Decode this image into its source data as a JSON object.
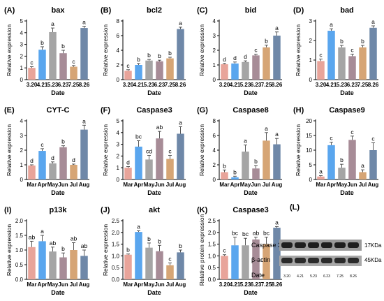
{
  "figure": {
    "blot_panel": {
      "letter": "(L)",
      "rows": [
        "Caspase 3",
        "β-actin"
      ],
      "sizes": [
        "17KDa",
        "45KDa"
      ],
      "date_label": "Date",
      "lanes": [
        "3.20",
        "4.21",
        "5.23",
        "6.23",
        "7.25",
        "8.26"
      ]
    }
  },
  "chart_data": [
    {
      "type": "bar",
      "letter": "(A)",
      "title": "bax",
      "xlabel": "Date",
      "ylabel": "Relative expression",
      "categories": [
        "3.20",
        "4.21",
        "5.23",
        "6.23",
        "7.25",
        "8.26"
      ],
      "values": [
        1.0,
        2.55,
        4.05,
        2.25,
        1.1,
        4.4
      ],
      "errors": [
        0.1,
        0.25,
        0.35,
        0.25,
        0.1,
        0.15
      ],
      "letters": [
        "c",
        "b",
        "a",
        "b",
        "c",
        "a"
      ],
      "yticks": [
        0,
        1,
        2,
        3,
        4,
        5
      ],
      "ylim": [
        0,
        5
      ]
    },
    {
      "type": "bar",
      "letter": "(B)",
      "title": "bcl2",
      "xlabel": "Date",
      "ylabel": "Relative expression",
      "categories": [
        "3.20",
        "4.21",
        "5.23",
        "6.23",
        "7.25",
        "8.26"
      ],
      "values": [
        1.2,
        2.0,
        2.6,
        2.5,
        2.9,
        6.9
      ],
      "errors": [
        0.15,
        0.2,
        0.15,
        0.15,
        0.15,
        0.25
      ],
      "letters": [
        "c",
        "b",
        "b",
        "b",
        "b",
        "a"
      ],
      "yticks": [
        0,
        2,
        4,
        6,
        8
      ],
      "ylim": [
        0,
        8
      ]
    },
    {
      "type": "bar",
      "letter": "(C)",
      "title": "bid",
      "xlabel": "Date",
      "ylabel": "Relative expression",
      "categories": [
        "3.20",
        "4.21",
        "5.23",
        "6.23",
        "7.25",
        "8.26"
      ],
      "values": [
        1.05,
        1.1,
        1.2,
        1.65,
        2.2,
        3.0
      ],
      "errors": [
        0.05,
        0.1,
        0.08,
        0.08,
        0.15,
        0.25
      ],
      "letters": [
        "d",
        "d",
        "d",
        "c",
        "b",
        "a"
      ],
      "yticks": [
        0,
        1,
        2,
        3,
        4
      ],
      "ylim": [
        0,
        4
      ]
    },
    {
      "type": "bar",
      "letter": "(D)",
      "title": "bad",
      "xlabel": "Date",
      "ylabel": "Relative expression",
      "categories": [
        "3.20",
        "4.21",
        "5.23",
        "6.23",
        "7.25",
        "8.26"
      ],
      "values": [
        0.95,
        2.5,
        1.65,
        1.2,
        1.65,
        2.65
      ],
      "errors": [
        0.1,
        0.1,
        0.1,
        0.1,
        0.1,
        0.1
      ],
      "letters": [
        "c",
        "a",
        "b",
        "c",
        "b",
        "a"
      ],
      "yticks": [
        0,
        1,
        2,
        3
      ],
      "ylim": [
        0,
        3
      ]
    },
    {
      "type": "bar",
      "letter": "(E)",
      "title": "CYT-C",
      "xlabel": "Date",
      "ylabel": "Relative expression",
      "categories": [
        "Mar",
        "Apr",
        "May",
        "Jun",
        "Jul",
        "Aug"
      ],
      "values": [
        0.95,
        1.95,
        1.1,
        2.2,
        1.0,
        3.4
      ],
      "errors": [
        0.05,
        0.15,
        0.1,
        0.1,
        0.05,
        0.3
      ],
      "letters": [
        "d",
        "c",
        "d",
        "b",
        "d",
        "a"
      ],
      "yticks": [
        0,
        1,
        2,
        3,
        4
      ],
      "ylim": [
        0,
        4
      ]
    },
    {
      "type": "bar",
      "letter": "(F)",
      "title": "Caspase3",
      "xlabel": "Date",
      "ylabel": "Relative expression",
      "categories": [
        "Mar",
        "Apr",
        "May",
        "Jun",
        "Jul",
        "Aug"
      ],
      "values": [
        1.0,
        2.8,
        1.7,
        3.5,
        1.75,
        3.9
      ],
      "errors": [
        0.1,
        0.5,
        0.35,
        0.6,
        0.3,
        0.6
      ],
      "letters": [
        "d",
        "bc",
        "cd",
        "ab",
        "c",
        "a"
      ],
      "yticks": [
        0,
        1,
        2,
        3,
        4,
        5
      ],
      "ylim": [
        0,
        5
      ]
    },
    {
      "type": "bar",
      "letter": "(G)",
      "title": "Caspase8",
      "xlabel": "Date",
      "ylabel": "Relative expression",
      "categories": [
        "Mar",
        "Apr",
        "May",
        "Jun",
        "Jul",
        "Aug"
      ],
      "values": [
        1.0,
        0.3,
        3.8,
        1.5,
        5.3,
        4.8
      ],
      "errors": [
        0.3,
        0.15,
        0.9,
        0.4,
        1.1,
        0.8
      ],
      "letters": [
        "b",
        "b",
        "a",
        "b",
        "a",
        "a"
      ],
      "yticks": [
        0,
        2,
        4,
        6,
        8
      ],
      "ylim": [
        0,
        8
      ]
    },
    {
      "type": "bar",
      "letter": "(H)",
      "title": "Caspase9",
      "xlabel": "Date",
      "ylabel": "Relative expression",
      "categories": [
        "Mar",
        "Apr",
        "May",
        "Jun",
        "Jul",
        "Aug"
      ],
      "values": [
        1.0,
        11.7,
        4.0,
        13.5,
        2.5,
        10.0
      ],
      "errors": [
        0.3,
        1.0,
        1.2,
        1.3,
        0.8,
        2.5
      ],
      "letters": [
        "a",
        "c",
        "b",
        "c",
        "a",
        "c"
      ],
      "yticks": [
        0,
        5,
        10,
        15,
        20
      ],
      "ylim": [
        0,
        20
      ]
    },
    {
      "type": "bar",
      "letter": "(I)",
      "title": "p13k",
      "xlabel": "Date",
      "ylabel": "Relative expression",
      "categories": [
        "Mar",
        "Apr",
        "May",
        "Jun",
        "Jul",
        "Aug"
      ],
      "values": [
        1.1,
        1.3,
        0.95,
        0.75,
        1.0,
        0.8
      ],
      "errors": [
        0.2,
        0.2,
        0.15,
        0.15,
        0.25,
        0.2
      ],
      "letters": [
        "ab",
        "a",
        "ab",
        "b",
        "ab",
        "ab"
      ],
      "yticks": [
        0.0,
        0.5,
        1.0,
        1.5,
        2.0
      ],
      "ylim": [
        0,
        2
      ]
    },
    {
      "type": "bar",
      "letter": "(J)",
      "title": "akt",
      "xlabel": "Date",
      "ylabel": "Relative expression",
      "categories": [
        "Mar",
        "Apr",
        "May",
        "Jun",
        "Jul",
        "Aug"
      ],
      "values": [
        1.05,
        2.02,
        1.35,
        1.2,
        0.6,
        1.15
      ],
      "errors": [
        0.03,
        0.05,
        0.2,
        0.25,
        0.1,
        0.1
      ],
      "letters": [
        "b",
        "a",
        "b",
        "b",
        "c",
        "b"
      ],
      "yticks": [
        0.0,
        0.5,
        1.0,
        1.5,
        2.0,
        2.5
      ],
      "ylim": [
        0,
        2.5
      ]
    },
    {
      "type": "bar",
      "letter": "(K)",
      "title": "Caspase3",
      "xlabel": "Date",
      "ylabel": "Relative protein expression",
      "categories": [
        "3.20",
        "4.21",
        "5.23",
        "6.23",
        "7.25",
        "8.26"
      ],
      "values": [
        1.0,
        1.45,
        1.45,
        1.7,
        1.5,
        2.2
      ],
      "errors": [
        0.05,
        0.35,
        0.3,
        0.1,
        0.3,
        0.05
      ],
      "letters": [
        "c",
        "bc",
        "bc",
        "ab",
        "bc",
        "a"
      ],
      "yticks": [
        0.0,
        0.5,
        1.0,
        1.5,
        2.0,
        2.5
      ],
      "ylim": [
        0,
        2.5
      ]
    }
  ]
}
